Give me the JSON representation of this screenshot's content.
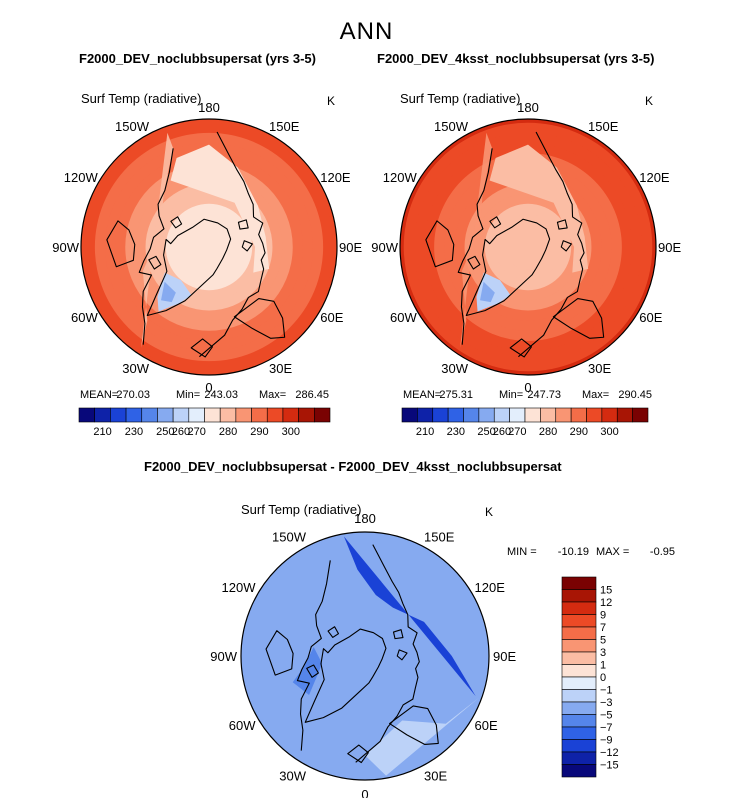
{
  "figure": {
    "title": "ANN"
  },
  "colors": {
    "levels_abs": [
      "#08087a",
      "#0e22a8",
      "#1a42d6",
      "#2f62e6",
      "#5585ea",
      "#86aaf0",
      "#bcd2f8",
      "#e3eefc",
      "#fde3d6",
      "#fbbda4",
      "#f99573",
      "#f46d48",
      "#ec4a26",
      "#d42b10",
      "#a81505",
      "#7a0202"
    ],
    "levels_diff": [
      "#08087a",
      "#0e22a8",
      "#1a42d6",
      "#2f62e6",
      "#5585ea",
      "#86aaf0",
      "#bcd2f8",
      "#e3eefc",
      "#fde3d6",
      "#fbbda4",
      "#f99573",
      "#f46d48",
      "#ec4a26",
      "#d42b10",
      "#a81505",
      "#7a0202"
    ],
    "coast": "#000000"
  },
  "chart_data": [
    {
      "type": "heatmap",
      "projection": "north-polar-stereographic",
      "title": "F2000_DEV_noclubbsupersat (yrs 3-5)",
      "variable": "Surf Temp (radiative)",
      "units": "K",
      "lon_labels": [
        "180",
        "150E",
        "120E",
        "90E",
        "60E",
        "30E",
        "0",
        "30W",
        "60W",
        "90W",
        "120W",
        "150W"
      ],
      "stats": {
        "mean_label": "MEAN=",
        "mean": "270.03",
        "min_label": "Min=",
        "min": "243.03",
        "max_label": "Max=",
        "max": "286.45"
      },
      "colorbar": {
        "orientation": "horizontal",
        "ticks": [
          "210",
          "230",
          "250",
          "260",
          "270",
          "280",
          "290",
          "300"
        ],
        "range": [
          200,
          310
        ]
      },
      "field": {
        "pole_value": 255,
        "equator_value": 288,
        "greenland_value": 243,
        "land_cold_value": 258
      }
    },
    {
      "type": "heatmap",
      "projection": "north-polar-stereographic",
      "title": "F2000_DEV_4ksst_noclubbsupersat (yrs 3-5)",
      "variable": "Surf Temp (radiative)",
      "units": "K",
      "lon_labels": [
        "180",
        "150E",
        "120E",
        "90E",
        "60E",
        "30E",
        "0",
        "30W",
        "60W",
        "90W",
        "120W",
        "150W"
      ],
      "stats": {
        "mean_label": "MEAN=",
        "mean": "275.31",
        "min_label": "Min=",
        "min": "247.73",
        "max_label": "Max=",
        "max": "290.45"
      },
      "colorbar": {
        "orientation": "horizontal",
        "ticks": [
          "210",
          "230",
          "250",
          "260",
          "270",
          "280",
          "290",
          "300"
        ],
        "range": [
          200,
          310
        ]
      },
      "field": {
        "pole_value": 262,
        "equator_value": 292,
        "greenland_value": 248,
        "land_cold_value": 264
      }
    },
    {
      "type": "heatmap",
      "projection": "north-polar-stereographic",
      "title": "F2000_DEV_noclubbsupersat - F2000_DEV_4ksst_noclubbsupersat",
      "variable": "Surf Temp (radiative)",
      "units": "K",
      "lon_labels": [
        "180",
        "150E",
        "120E",
        "90E",
        "60E",
        "30E",
        "0",
        "30W",
        "60W",
        "90W",
        "120W",
        "150W"
      ],
      "stats": {
        "min_label": "MIN =",
        "min": "-10.19",
        "max_label": "MAX =",
        "max": "-0.95"
      },
      "colorbar": {
        "orientation": "vertical",
        "ticks": [
          "15",
          "12",
          "9",
          "7",
          "5",
          "3",
          "1",
          "0",
          "−1",
          "−3",
          "−5",
          "−7",
          "−9",
          "−12",
          "−15"
        ]
      },
      "field": {
        "ocean_value": -4.2,
        "siberia_value": -9.5,
        "greenland_value": -3.2,
        "arctic_value": -5.5
      }
    }
  ]
}
